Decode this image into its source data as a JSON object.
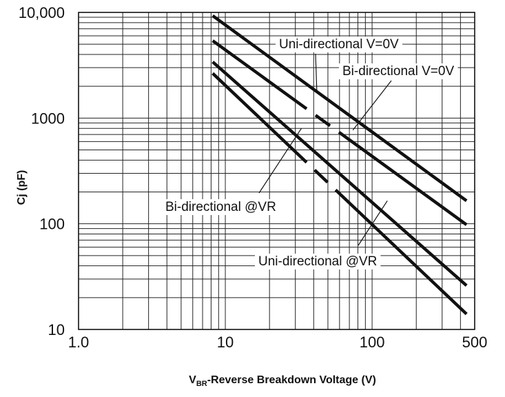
{
  "chart_data": {
    "type": "line",
    "xscale": "log",
    "yscale": "log",
    "xlim": [
      1.0,
      500
    ],
    "ylim": [
      10,
      10000
    ],
    "grid": true,
    "xlabel": {
      "main": "V",
      "sub": "BR",
      "rest": "-Reverse  Breakdown Voltage (V)"
    },
    "ylabel": "Cj  (pF)",
    "xticks": [
      {
        "value": 1,
        "label": "1.0"
      },
      {
        "value": 10,
        "label": "10"
      },
      {
        "value": 100,
        "label": "100"
      },
      {
        "value": 500,
        "label": "500"
      }
    ],
    "yticks": [
      {
        "value": 10000,
        "label": "10,000"
      },
      {
        "value": 1000,
        "label": "1000"
      },
      {
        "value": 100,
        "label": "100"
      },
      {
        "value": 10,
        "label": "10"
      }
    ],
    "series": [
      {
        "name": "Uni-directional  V=0V",
        "x": [
          8.2,
          440
        ],
        "y": [
          9300,
          165
        ],
        "style": "solid"
      },
      {
        "name": "Bi-directional  V=0V",
        "x": [
          8.2,
          440
        ],
        "y": [
          5400,
          98
        ],
        "style": "dashed-mid"
      },
      {
        "name": "Bi-directional @VR",
        "x": [
          8.2,
          440
        ],
        "y": [
          3400,
          26
        ],
        "style": "solid"
      },
      {
        "name": "Uni-directional @VR",
        "x": [
          8.2,
          440
        ],
        "y": [
          2650,
          14
        ],
        "style": "dashed-mid"
      }
    ],
    "annotations": [
      {
        "text": "Uni-directional  V=0V",
        "anchor_x": 42,
        "anchor_y": 1800
      },
      {
        "text": "Bi-directional  V=0V",
        "anchor_x": 74,
        "anchor_y": 770
      },
      {
        "text": "Bi-directional @VR",
        "anchor_x": 33,
        "anchor_y": 800
      },
      {
        "text": "Uni-directional @VR",
        "anchor_x": 127,
        "anchor_y": 165
      }
    ]
  }
}
